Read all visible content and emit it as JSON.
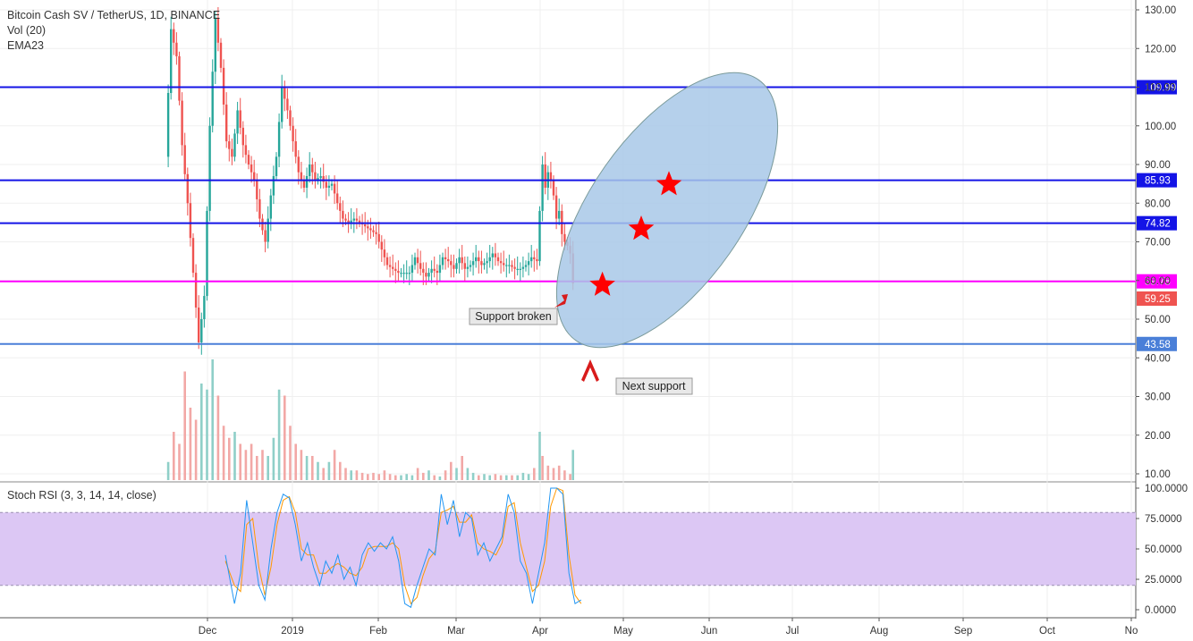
{
  "chart_data": {
    "type": "candlestick",
    "title": "Bitcoin Cash SV / TetherUS, 1D, BINANCE",
    "indicators": [
      "Vol (20)",
      "EMA23"
    ],
    "price_axis": {
      "ticks": [
        "130.00",
        "120.00",
        "110.00",
        "100.00",
        "90.00",
        "80.00",
        "70.00",
        "60.00",
        "50.00",
        "40.00",
        "30.00",
        "20.00",
        "10.00"
      ],
      "range": [
        8,
        134
      ]
    },
    "time_axis": {
      "labels": [
        "Dec",
        "2019",
        "Feb",
        "Mar",
        "Apr",
        "May",
        "Jun",
        "Jul",
        "Aug",
        "Sep",
        "Oct",
        "No"
      ]
    },
    "horizontal_levels": [
      {
        "value": 109.99,
        "label": "109.99",
        "color": "#1414e6"
      },
      {
        "value": 85.93,
        "label": "85.93",
        "color": "#1414e6"
      },
      {
        "value": 74.82,
        "label": "74.82",
        "color": "#1414e6"
      },
      {
        "value": 59.78,
        "label": "59.78",
        "color": "#ff00ff"
      },
      {
        "value": 43.58,
        "label": "43.58",
        "color": "#4a7fd8"
      }
    ],
    "last_price": {
      "value": 59.25,
      "label": "59.25",
      "color": "#ef5350"
    },
    "price_path": [
      [
        0,
        92
      ],
      [
        2,
        125
      ],
      [
        4,
        118
      ],
      [
        6,
        95
      ],
      [
        8,
        80
      ],
      [
        10,
        62
      ],
      [
        12,
        44
      ],
      [
        14,
        56
      ],
      [
        16,
        100
      ],
      [
        18,
        128
      ],
      [
        20,
        115
      ],
      [
        22,
        96
      ],
      [
        24,
        92
      ],
      [
        26,
        104
      ],
      [
        28,
        95
      ],
      [
        30,
        90
      ],
      [
        32,
        86
      ],
      [
        34,
        76
      ],
      [
        36,
        70
      ],
      [
        38,
        82
      ],
      [
        40,
        92
      ],
      [
        42,
        110
      ],
      [
        44,
        104
      ],
      [
        46,
        96
      ],
      [
        48,
        88
      ],
      [
        50,
        84
      ],
      [
        52,
        90
      ],
      [
        54,
        86
      ],
      [
        56,
        87
      ],
      [
        58,
        84
      ],
      [
        60,
        85
      ],
      [
        62,
        80
      ],
      [
        64,
        76
      ],
      [
        66,
        75
      ],
      [
        68,
        76
      ],
      [
        70,
        75
      ],
      [
        72,
        74
      ],
      [
        74,
        73
      ],
      [
        76,
        72
      ],
      [
        78,
        68
      ],
      [
        80,
        64
      ],
      [
        82,
        63
      ],
      [
        84,
        62
      ],
      [
        86,
        62
      ],
      [
        88,
        62
      ],
      [
        90,
        66
      ],
      [
        92,
        63
      ],
      [
        94,
        61
      ],
      [
        96,
        63
      ],
      [
        98,
        62
      ],
      [
        100,
        66
      ],
      [
        102,
        65
      ],
      [
        104,
        63
      ],
      [
        106,
        66
      ],
      [
        108,
        63
      ],
      [
        110,
        64
      ],
      [
        112,
        66
      ],
      [
        114,
        64
      ],
      [
        116,
        65
      ],
      [
        118,
        67
      ],
      [
        120,
        65
      ],
      [
        122,
        64
      ],
      [
        124,
        64
      ],
      [
        126,
        63
      ],
      [
        128,
        63
      ],
      [
        130,
        64
      ],
      [
        132,
        66
      ],
      [
        134,
        65
      ],
      [
        135,
        78
      ],
      [
        136,
        90
      ],
      [
        137,
        84
      ],
      [
        138,
        88
      ],
      [
        139,
        86
      ],
      [
        140,
        82
      ],
      [
        141,
        76
      ],
      [
        142,
        78
      ],
      [
        143,
        72
      ],
      [
        144,
        70
      ],
      [
        145,
        69
      ],
      [
        146,
        67
      ],
      [
        147,
        59.25
      ]
    ],
    "volume": [
      {
        "day": 1,
        "value": 0.15
      },
      {
        "day": 3,
        "value": 0.4
      },
      {
        "day": 5,
        "value": 0.3
      },
      {
        "day": 7,
        "value": 0.9
      },
      {
        "day": 9,
        "value": 0.6
      },
      {
        "day": 11,
        "value": 0.5
      },
      {
        "day": 13,
        "value": 0.8
      },
      {
        "day": 15,
        "value": 0.75
      },
      {
        "day": 17,
        "value": 1.0
      },
      {
        "day": 19,
        "value": 0.7
      },
      {
        "day": 21,
        "value": 0.45
      },
      {
        "day": 23,
        "value": 0.35
      },
      {
        "day": 25,
        "value": 0.4
      },
      {
        "day": 27,
        "value": 0.3
      },
      {
        "day": 29,
        "value": 0.25
      },
      {
        "day": 31,
        "value": 0.3
      },
      {
        "day": 33,
        "value": 0.2
      },
      {
        "day": 35,
        "value": 0.25
      },
      {
        "day": 37,
        "value": 0.2
      },
      {
        "day": 39,
        "value": 0.35
      },
      {
        "day": 41,
        "value": 0.75
      },
      {
        "day": 43,
        "value": 0.7
      },
      {
        "day": 45,
        "value": 0.45
      },
      {
        "day": 47,
        "value": 0.3
      },
      {
        "day": 49,
        "value": 0.25
      },
      {
        "day": 51,
        "value": 0.2
      },
      {
        "day": 53,
        "value": 0.2
      },
      {
        "day": 55,
        "value": 0.15
      },
      {
        "day": 57,
        "value": 0.1
      },
      {
        "day": 59,
        "value": 0.15
      },
      {
        "day": 61,
        "value": 0.25
      },
      {
        "day": 63,
        "value": 0.15
      },
      {
        "day": 65,
        "value": 0.1
      },
      {
        "day": 67,
        "value": 0.08
      },
      {
        "day": 69,
        "value": 0.08
      },
      {
        "day": 71,
        "value": 0.06
      },
      {
        "day": 73,
        "value": 0.05
      },
      {
        "day": 75,
        "value": 0.06
      },
      {
        "day": 77,
        "value": 0.05
      },
      {
        "day": 79,
        "value": 0.08
      },
      {
        "day": 81,
        "value": 0.05
      },
      {
        "day": 83,
        "value": 0.04
      },
      {
        "day": 85,
        "value": 0.04
      },
      {
        "day": 87,
        "value": 0.05
      },
      {
        "day": 89,
        "value": 0.04
      },
      {
        "day": 91,
        "value": 0.1
      },
      {
        "day": 93,
        "value": 0.06
      },
      {
        "day": 95,
        "value": 0.08
      },
      {
        "day": 97,
        "value": 0.04
      },
      {
        "day": 99,
        "value": 0.03
      },
      {
        "day": 101,
        "value": 0.08
      },
      {
        "day": 103,
        "value": 0.15
      },
      {
        "day": 105,
        "value": 0.1
      },
      {
        "day": 107,
        "value": 0.2
      },
      {
        "day": 109,
        "value": 0.1
      },
      {
        "day": 111,
        "value": 0.06
      },
      {
        "day": 113,
        "value": 0.04
      },
      {
        "day": 115,
        "value": 0.05
      },
      {
        "day": 117,
        "value": 0.04
      },
      {
        "day": 119,
        "value": 0.05
      },
      {
        "day": 121,
        "value": 0.04
      },
      {
        "day": 123,
        "value": 0.04
      },
      {
        "day": 125,
        "value": 0.04
      },
      {
        "day": 127,
        "value": 0.04
      },
      {
        "day": 129,
        "value": 0.06
      },
      {
        "day": 131,
        "value": 0.05
      },
      {
        "day": 133,
        "value": 0.1
      },
      {
        "day": 135,
        "value": 0.4
      },
      {
        "day": 136,
        "value": 0.2
      },
      {
        "day": 138,
        "value": 0.12
      },
      {
        "day": 140,
        "value": 0.1
      },
      {
        "day": 142,
        "value": 0.12
      },
      {
        "day": 144,
        "value": 0.08
      },
      {
        "day": 146,
        "value": 0.05
      },
      {
        "day": 147,
        "value": 0.25
      }
    ],
    "annotations": {
      "support_broken": "Support broken",
      "next_support": "Next support",
      "stars": [
        {
          "day": 176,
          "price": 60
        },
        {
          "day": 190,
          "price": 74.5
        },
        {
          "day": 200,
          "price": 86
        }
      ]
    },
    "stoch_rsi": {
      "title": "Stoch RSI (3, 3, 14, 14, close)",
      "ticks": [
        "100.0000",
        "75.0000",
        "50.0000",
        "25.0000",
        "0.0000"
      ],
      "band": [
        20,
        80
      ],
      "k": [
        [
          5,
          45
        ],
        [
          8,
          5
        ],
        [
          10,
          30
        ],
        [
          12,
          90
        ],
        [
          14,
          55
        ],
        [
          16,
          20
        ],
        [
          18,
          8
        ],
        [
          20,
          50
        ],
        [
          22,
          80
        ],
        [
          24,
          95
        ],
        [
          26,
          92
        ],
        [
          28,
          70
        ],
        [
          30,
          40
        ],
        [
          32,
          55
        ],
        [
          34,
          35
        ],
        [
          36,
          20
        ],
        [
          38,
          40
        ],
        [
          40,
          30
        ],
        [
          42,
          45
        ],
        [
          44,
          25
        ],
        [
          46,
          35
        ],
        [
          48,
          20
        ],
        [
          50,
          45
        ],
        [
          52,
          55
        ],
        [
          54,
          48
        ],
        [
          56,
          55
        ],
        [
          58,
          50
        ],
        [
          60,
          60
        ],
        [
          62,
          40
        ],
        [
          64,
          5
        ],
        [
          66,
          2
        ],
        [
          68,
          20
        ],
        [
          70,
          35
        ],
        [
          72,
          50
        ],
        [
          74,
          45
        ],
        [
          76,
          95
        ],
        [
          78,
          70
        ],
        [
          80,
          90
        ],
        [
          82,
          60
        ],
        [
          84,
          80
        ],
        [
          86,
          75
        ],
        [
          88,
          45
        ],
        [
          90,
          55
        ],
        [
          92,
          40
        ],
        [
          94,
          50
        ],
        [
          96,
          60
        ],
        [
          98,
          95
        ],
        [
          100,
          80
        ],
        [
          102,
          40
        ],
        [
          104,
          30
        ],
        [
          106,
          5
        ],
        [
          108,
          30
        ],
        [
          110,
          55
        ],
        [
          112,
          100
        ],
        [
          114,
          100
        ],
        [
          116,
          95
        ],
        [
          118,
          30
        ],
        [
          120,
          5
        ],
        [
          122,
          8
        ]
      ],
      "d": [
        [
          5,
          40
        ],
        [
          8,
          20
        ],
        [
          10,
          15
        ],
        [
          12,
          70
        ],
        [
          14,
          75
        ],
        [
          16,
          35
        ],
        [
          18,
          12
        ],
        [
          20,
          35
        ],
        [
          22,
          70
        ],
        [
          24,
          90
        ],
        [
          26,
          93
        ],
        [
          28,
          80
        ],
        [
          30,
          50
        ],
        [
          32,
          45
        ],
        [
          34,
          45
        ],
        [
          36,
          30
        ],
        [
          38,
          30
        ],
        [
          40,
          35
        ],
        [
          42,
          38
        ],
        [
          44,
          35
        ],
        [
          46,
          30
        ],
        [
          48,
          28
        ],
        [
          50,
          35
        ],
        [
          52,
          50
        ],
        [
          54,
          52
        ],
        [
          56,
          52
        ],
        [
          58,
          52
        ],
        [
          60,
          55
        ],
        [
          62,
          50
        ],
        [
          64,
          20
        ],
        [
          66,
          5
        ],
        [
          68,
          10
        ],
        [
          70,
          28
        ],
        [
          72,
          42
        ],
        [
          74,
          48
        ],
        [
          76,
          80
        ],
        [
          78,
          82
        ],
        [
          80,
          85
        ],
        [
          82,
          72
        ],
        [
          84,
          72
        ],
        [
          86,
          78
        ],
        [
          88,
          55
        ],
        [
          90,
          50
        ],
        [
          92,
          48
        ],
        [
          94,
          45
        ],
        [
          96,
          55
        ],
        [
          98,
          85
        ],
        [
          100,
          88
        ],
        [
          102,
          55
        ],
        [
          104,
          35
        ],
        [
          106,
          15
        ],
        [
          108,
          20
        ],
        [
          110,
          40
        ],
        [
          112,
          85
        ],
        [
          114,
          100
        ],
        [
          116,
          98
        ],
        [
          118,
          45
        ],
        [
          120,
          12
        ],
        [
          122,
          5
        ]
      ]
    },
    "colors": {
      "up": "#26a69a",
      "down": "#ef5350",
      "vol_up": "#8fcfc8",
      "vol_down": "#f2a8a6",
      "ellipse_fill": "#a8c8e8",
      "rsi_band": "#dcc7f4",
      "k_line": "#2196f3",
      "d_line": "#ff9800",
      "annotation_arrow": "#d81b1b",
      "star": "#ff0000"
    }
  }
}
